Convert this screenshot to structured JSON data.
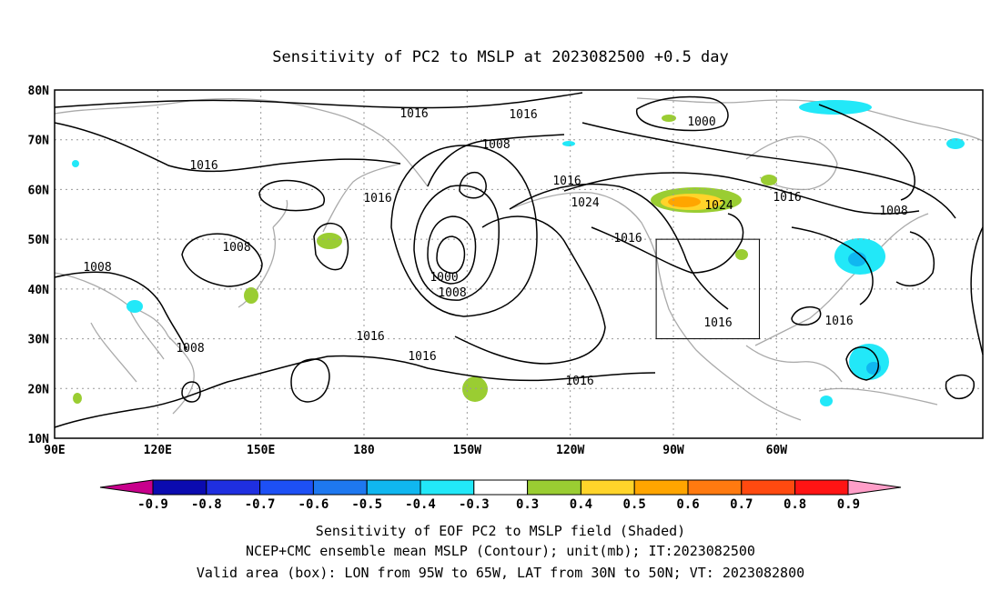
{
  "title": "Sensitivity of PC2 to MSLP at 2023082500 +0.5 day",
  "map": {
    "lat_labels": [
      "80N",
      "70N",
      "60N",
      "50N",
      "40N",
      "30N",
      "20N",
      "10N"
    ],
    "lon_labels": [
      "90E",
      "120E",
      "150E",
      "180",
      "150W",
      "120W",
      "90W",
      "60W"
    ],
    "contour_labels": [
      "1016",
      "1008",
      "1016",
      "1016",
      "1016",
      "1008",
      "1008",
      "1000",
      "1008",
      "1016",
      "1008",
      "1016",
      "1016",
      "1024",
      "1016",
      "1000",
      "1024",
      "1016",
      "1008",
      "1016",
      "1016",
      "1016"
    ],
    "valid_box": {
      "lon_range": [
        "95W",
        "65W"
      ],
      "lat_range": [
        "30N",
        "50N"
      ]
    }
  },
  "colorbar": {
    "labels": [
      "-0.9",
      "-0.8",
      "-0.7",
      "-0.6",
      "-0.5",
      "-0.4",
      "-0.3",
      "0.3",
      "0.4",
      "0.5",
      "0.6",
      "0.7",
      "0.8",
      "0.9"
    ],
    "colors": [
      "#0b0bb0",
      "#1f2fe0",
      "#1d50f5",
      "#1e78f0",
      "#10b7f0",
      "#22e8f8",
      "#ffffff",
      "#9acd32",
      "#ffd42a",
      "#ffa500",
      "#ff7a10",
      "#ff4a10",
      "#ff1414"
    ],
    "low_arrow_color": "#c8008c",
    "high_arrow_color": "#ff9ec8"
  },
  "footer": [
    "Sensitivity of EOF PC2 to MSLP field (Shaded)",
    "NCEP+CMC ensemble mean MSLP (Contour); unit(mb); IT:2023082500",
    "Valid area (box): LON from 95W to 65W, LAT from 30N to 50N; VT: 2023082800"
  ]
}
